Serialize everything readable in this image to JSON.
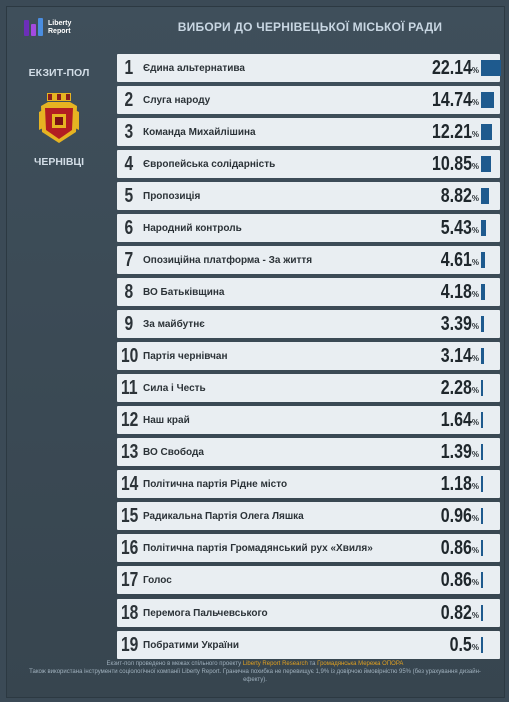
{
  "header": {
    "logo_line1": "Liberty",
    "logo_line2": "Report",
    "title": "ВИБОРИ ДО ЧЕРНІВЕЦЬКОЇ МІСЬКОЇ РАДИ"
  },
  "sidebar": {
    "poll_label": "ЕКЗИТ-ПОЛ",
    "city_label": "ЧЕРНІВЦІ",
    "emblem_icon": "city-coat-of-arms"
  },
  "colors": {
    "bar": "#1e5a8e",
    "row_bg": "#e9eef2",
    "page_bg": "#3b4a56"
  },
  "chart_data": {
    "type": "bar",
    "title": "ВИБОРИ ДО ЧЕРНІВЕЦЬКОЇ МІСЬКОЇ РАДИ",
    "unit": "%",
    "ranks": [
      "1",
      "2",
      "3",
      "4",
      "5",
      "6",
      "7",
      "8",
      "9",
      "10",
      "11",
      "12",
      "13",
      "14",
      "15",
      "16",
      "17",
      "18",
      "19"
    ],
    "categories": [
      "Єдина альтернатива",
      "Слуга народу",
      "Команда Михайлішина",
      "Європейська солідарність",
      "Пропозиція",
      "Народний контроль",
      "Опозиційна платформа - За життя",
      "ВО Батьківщина",
      "За майбутнє",
      "Партія чернівчан",
      "Сила і Честь",
      "Наш край",
      "ВО Свобода",
      "Політична партія Рідне місто",
      "Радикальна Партія Олега Ляшка",
      "Політична партія Громадянський рух «Хвиля»",
      "Голос",
      "Перемога Пальчевського",
      "Побратими України"
    ],
    "values": [
      22.14,
      14.74,
      12.21,
      10.85,
      8.82,
      5.43,
      4.61,
      4.18,
      3.39,
      3.14,
      2.28,
      1.64,
      1.39,
      1.18,
      0.96,
      0.86,
      0.86,
      0.82,
      0.5
    ],
    "labels": [
      "22.14",
      "14.74",
      "12.21",
      "10.85",
      "8.82",
      "5.43",
      "4.61",
      "4.18",
      "3.39",
      "3.14",
      "2.28",
      "1.64",
      "1.39",
      "1.18",
      "0.96",
      "0.86",
      "0.86",
      "0.82",
      "0.5"
    ],
    "pct_sign": "%"
  },
  "footer": {
    "line1_a": "Екзит-пол проведено в межах спільного проекту",
    "line1_hl1": "Liberty Report Research",
    "line1_b": "та",
    "line1_hl2": "Громадянська Мережа ОПОРА",
    "line2": "Також використана інструменти соціологічної компанії Liberty Report. Гранична похибка не перевищує 1,9% із довірчою ймовірністю 95% (без урахування дизайн-ефекту)."
  }
}
